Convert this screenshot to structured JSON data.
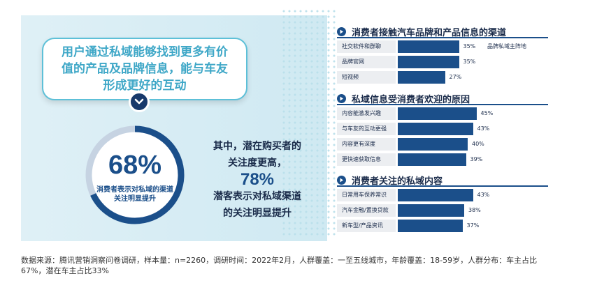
{
  "callout": {
    "text": "用户通过私域能够找到更多有价值的产品及品牌信息，能与车友形成更好的互动"
  },
  "ring": {
    "value_label": "68%",
    "fraction": 0.68,
    "caption": "消费者表示对私域的渠道关注明显提升"
  },
  "side": {
    "line1": "其中，潜在购买者的",
    "line2": "关注度更高，",
    "value": "78%",
    "line3": "潜客表示对私域渠道",
    "line4": "的关注明显提升"
  },
  "chart_data": [
    {
      "type": "bar",
      "title": "消费者接触汽车品牌和产品信息的渠道",
      "categories": [
        "社交软件和群聊",
        "品牌官网",
        "短视频"
      ],
      "values": [
        35,
        35,
        27
      ],
      "value_labels": [
        "35%",
        "35%",
        "27%"
      ],
      "annotation": "品牌私域主阵地"
    },
    {
      "type": "bar",
      "title": "私域信息受消费者欢迎的原因",
      "categories": [
        "内容能激发兴趣",
        "与车友的互动更强",
        "内容更有深度",
        "更快速获取信息"
      ],
      "values": [
        45,
        43,
        40,
        39
      ],
      "value_labels": [
        "45%",
        "43%",
        "40%",
        "39%"
      ]
    },
    {
      "type": "bar",
      "title": "消费者关注的私域内容",
      "categories": [
        "日常用车保养常识",
        "汽车金融/置换贷款",
        "新车型/产品资讯"
      ],
      "values": [
        43,
        38,
        37
      ],
      "value_labels": [
        "43%",
        "38%",
        "37%"
      ]
    }
  ],
  "footer": {
    "text": "数据来源：腾讯营销洞察问卷调研，样本量：n=2260，调研时间：2022年2月，人群覆盖：一至五线城市，年龄覆盖：18-59岁，人群分布：车主占比67%，潜在车主占比33%"
  },
  "colors": {
    "accent": "#1b4f8a",
    "teal": "#3ea7c7",
    "panel": "#dff0f6"
  }
}
